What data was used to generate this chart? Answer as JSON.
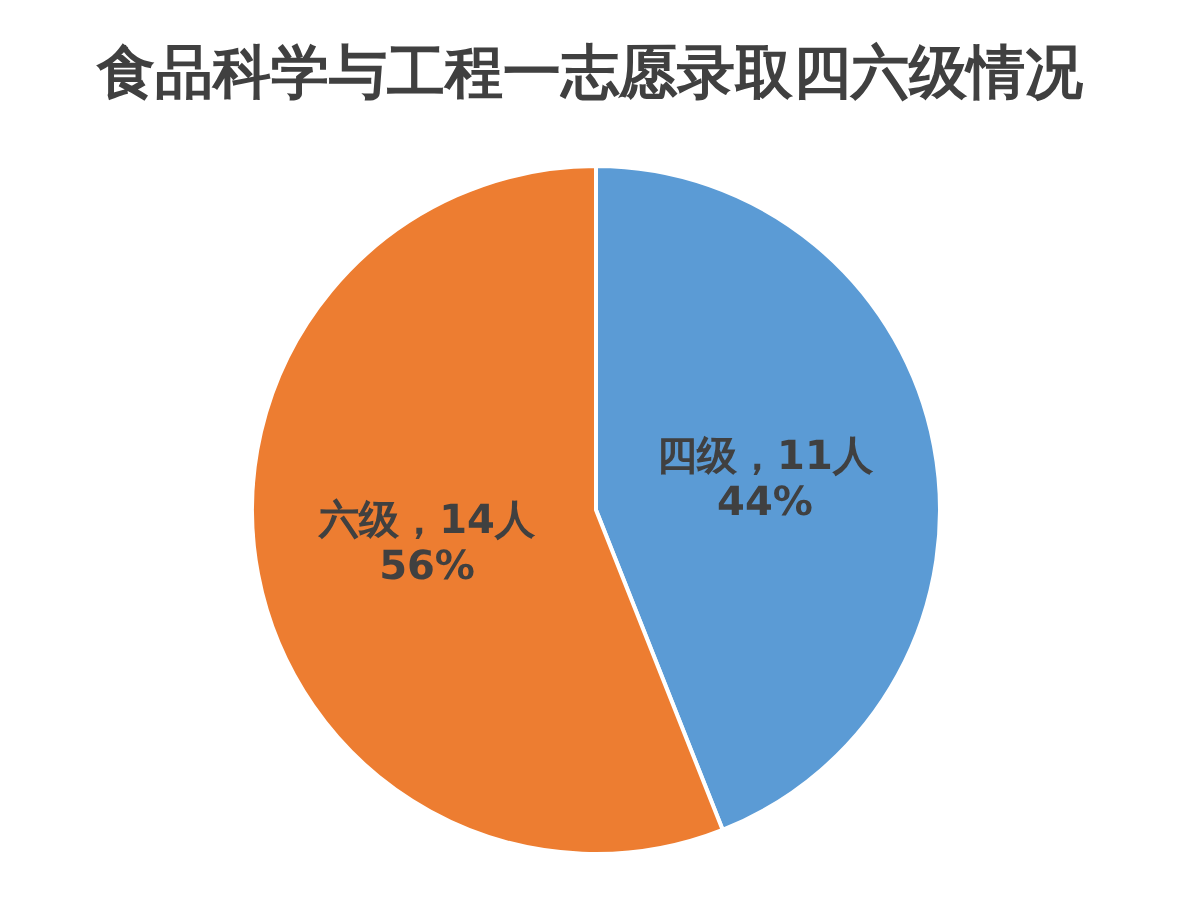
{
  "chart_data": {
    "type": "pie",
    "title": "食品科学与工程一志愿录取四六级情况",
    "categories": [
      "四级",
      "六级"
    ],
    "values": [
      11,
      14
    ],
    "colors": [
      "#5b9bd5",
      "#ed7d31"
    ],
    "value_labels": [
      "，11人\n44%",
      "，14人\n56%"
    ]
  }
}
